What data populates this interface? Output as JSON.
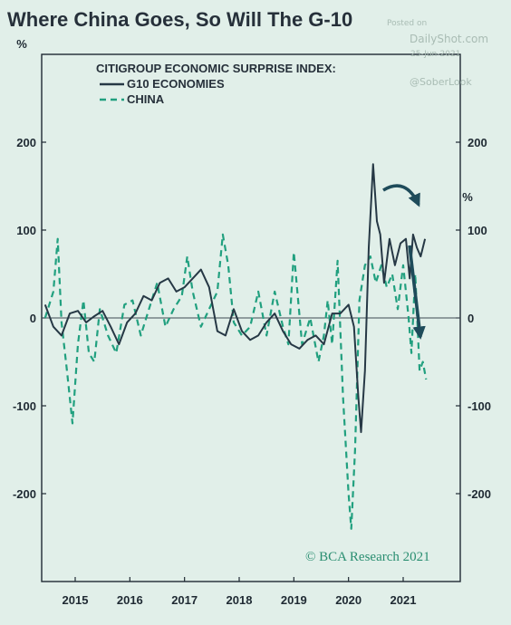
{
  "title": "Where China Goes, So Will The G-10",
  "watermark": {
    "posted_label": "Posted on",
    "site": "DailyShot.com",
    "date": "25-Jun-2021",
    "handle": "@SoberLook"
  },
  "colors": {
    "background": "#e1efe9",
    "title": "#26303a",
    "axis_text": "#1f2a33",
    "g10": "#263845",
    "china": "#21a07f",
    "zero_line": "#3f4a52",
    "arrow": "#1e4b5a",
    "credit": "#2a8e71"
  },
  "chart_data": {
    "type": "line",
    "title": "CITIGROUP ECONOMIC SURPRISE INDEX:",
    "y_unit_left": "%",
    "y_unit_right": "%",
    "ylim": [
      -300,
      300
    ],
    "xlim": [
      2014.45,
      2021.75
    ],
    "yticks": [
      -200,
      -100,
      0,
      100,
      200
    ],
    "yticklabels": [
      "-200",
      "-100",
      "0",
      "100",
      "200"
    ],
    "xticks": [
      2015,
      2016,
      2017,
      2018,
      2019,
      2020,
      2021
    ],
    "xticklabels": [
      "2015",
      "2016",
      "2017",
      "2018",
      "2019",
      "2020",
      "2021"
    ],
    "grid": false,
    "legend_position": "top-left",
    "credit": "© BCA Research 2021",
    "series": [
      {
        "name": "G10 ECONOMIES",
        "style": "solid",
        "x": [
          2014.45,
          2014.6,
          2014.75,
          2014.9,
          2015.05,
          2015.2,
          2015.35,
          2015.5,
          2015.65,
          2015.8,
          2015.95,
          2016.1,
          2016.25,
          2016.4,
          2016.55,
          2016.7,
          2016.85,
          2017.0,
          2017.15,
          2017.3,
          2017.45,
          2017.6,
          2017.75,
          2017.9,
          2018.05,
          2018.2,
          2018.35,
          2018.5,
          2018.65,
          2018.8,
          2018.95,
          2019.1,
          2019.25,
          2019.4,
          2019.55,
          2019.7,
          2019.85,
          2020.0,
          2020.1,
          2020.18,
          2020.23,
          2020.3,
          2020.37,
          2020.45,
          2020.52,
          2020.58,
          2020.65,
          2020.75,
          2020.85,
          2020.95,
          2021.05,
          2021.12,
          2021.18,
          2021.25,
          2021.32,
          2021.4
        ],
        "y": [
          15,
          -10,
          -20,
          5,
          8,
          -5,
          2,
          8,
          -10,
          -30,
          -5,
          5,
          25,
          20,
          40,
          45,
          30,
          35,
          45,
          55,
          35,
          -15,
          -20,
          10,
          -15,
          -25,
          -20,
          -5,
          5,
          -15,
          -30,
          -35,
          -25,
          -20,
          -30,
          5,
          5,
          15,
          -10,
          -90,
          -130,
          -60,
          80,
          175,
          110,
          95,
          40,
          90,
          60,
          85,
          90,
          45,
          95,
          80,
          70,
          90
        ]
      },
      {
        "name": "CHINA",
        "style": "dashed",
        "x": [
          2014.45,
          2014.6,
          2014.68,
          2014.75,
          2014.85,
          2014.95,
          2015.05,
          2015.15,
          2015.25,
          2015.35,
          2015.45,
          2015.6,
          2015.75,
          2015.9,
          2016.05,
          2016.2,
          2016.35,
          2016.5,
          2016.65,
          2016.8,
          2016.95,
          2017.05,
          2017.15,
          2017.3,
          2017.45,
          2017.6,
          2017.7,
          2017.8,
          2017.9,
          2018.05,
          2018.2,
          2018.35,
          2018.5,
          2018.65,
          2018.8,
          2018.9,
          2019.0,
          2019.15,
          2019.3,
          2019.45,
          2019.55,
          2019.62,
          2019.7,
          2019.8,
          2019.9,
          2020.0,
          2020.05,
          2020.12,
          2020.2,
          2020.3,
          2020.4,
          2020.5,
          2020.6,
          2020.7,
          2020.8,
          2020.9,
          2021.0,
          2021.1,
          2021.15,
          2021.22,
          2021.3,
          2021.36,
          2021.42
        ],
        "y": [
          0,
          30,
          90,
          -5,
          -60,
          -120,
          -30,
          20,
          -40,
          -50,
          10,
          -20,
          -40,
          15,
          20,
          -20,
          10,
          40,
          -10,
          10,
          25,
          70,
          30,
          -10,
          10,
          30,
          95,
          60,
          -5,
          -20,
          -10,
          30,
          -20,
          30,
          -10,
          -30,
          75,
          -30,
          0,
          -50,
          -20,
          20,
          -30,
          65,
          -90,
          -200,
          -240,
          -150,
          20,
          60,
          70,
          40,
          60,
          35,
          50,
          10,
          60,
          0,
          -40,
          50,
          -60,
          -50,
          -70
        ]
      }
    ]
  }
}
